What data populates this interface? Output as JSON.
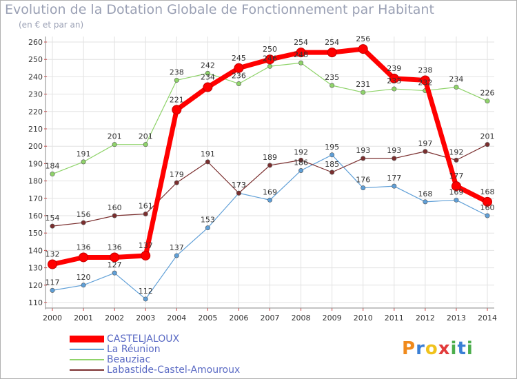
{
  "title": "Evolution de la Dotation Globale de Fonctionnement par Habitant",
  "subtitle": "(en € et par an)",
  "brand": {
    "text": "Proxiti",
    "letters": [
      "P",
      "r",
      "o",
      "x",
      "i",
      "t",
      "i"
    ],
    "colors": [
      "#f08a1c",
      "#3a7fd5",
      "#f0c21c",
      "#e23b3b",
      "#4cae4c",
      "#3a7fd5",
      "#4cae4c"
    ]
  },
  "chart_data": {
    "type": "line",
    "x": [
      "2000",
      "2001",
      "2002",
      "2003",
      "2004",
      "2005",
      "2006",
      "2007",
      "2008",
      "2009",
      "2010",
      "2011",
      "2012",
      "2013",
      "2014"
    ],
    "ylim": [
      110,
      260
    ],
    "yticks": [
      "110",
      "120",
      "130",
      "140",
      "150",
      "160",
      "170",
      "180",
      "190",
      "200",
      "210",
      "220",
      "230",
      "240",
      "250",
      "260"
    ],
    "grid": true,
    "legend_position": "bottom-left",
    "series": [
      {
        "name": "CASTELJALOUX",
        "color": "#ff0000",
        "values": [
          132,
          136,
          136,
          137,
          221,
          234,
          245,
          250,
          254,
          254,
          256,
          239,
          238,
          177,
          168
        ]
      },
      {
        "name": "La Réunion",
        "color": "#5f9fd7",
        "values": [
          117,
          120,
          127,
          112,
          137,
          153,
          173,
          169,
          186,
          195,
          176,
          177,
          168,
          169,
          160
        ]
      },
      {
        "name": "Beauziac",
        "color": "#8fd36a",
        "values": [
          184,
          191,
          201,
          201,
          238,
          242,
          236,
          246,
          248,
          235,
          231,
          233,
          232,
          234,
          226
        ]
      },
      {
        "name": "Labastide-Castel-Amouroux",
        "color": "#7a2e2e",
        "values": [
          154,
          156,
          160,
          161,
          179,
          191,
          173,
          189,
          192,
          185,
          193,
          193,
          197,
          192,
          201
        ]
      }
    ]
  }
}
